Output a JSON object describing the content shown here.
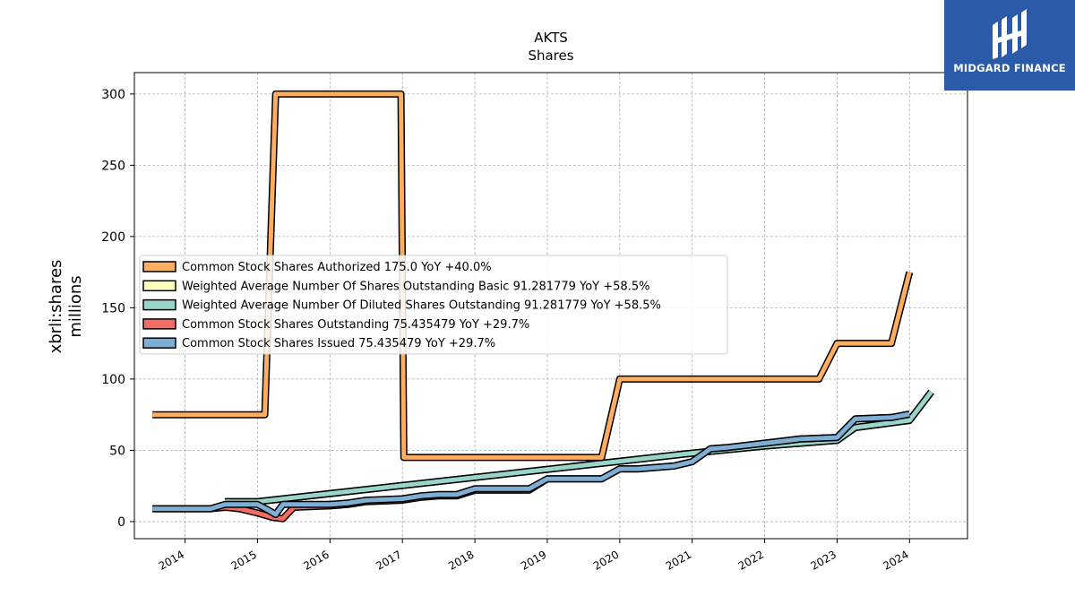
{
  "chart_data": {
    "type": "line",
    "title": "AKTS",
    "subtitle": "Shares",
    "ylabel": "xbrli:shares",
    "ylabel2": "millions",
    "xlim": [
      2013.3,
      2024.8
    ],
    "ylim": [
      -12,
      315
    ],
    "x_ticks": [
      2014,
      2015,
      2016,
      2017,
      2018,
      2019,
      2020,
      2021,
      2022,
      2023,
      2024
    ],
    "x_tick_labels": [
      "2014",
      "2015",
      "2016",
      "2017",
      "2018",
      "2019",
      "2020",
      "2021",
      "2022",
      "2023",
      "2024"
    ],
    "y_ticks": [
      0,
      50,
      100,
      150,
      200,
      250,
      300
    ],
    "y_tick_labels": [
      "0",
      "50",
      "100",
      "150",
      "200",
      "250",
      "300"
    ],
    "grid": true,
    "legend_position": "center-left",
    "series": [
      {
        "name": "Common Stock Shares Authorized  175.0 YoY +40.0%",
        "color": "#fdae61",
        "points": [
          [
            2013.55,
            75
          ],
          [
            2015.1,
            75
          ],
          [
            2015.25,
            300
          ],
          [
            2016.98,
            300
          ],
          [
            2017.02,
            45
          ],
          [
            2019.75,
            45
          ],
          [
            2020.0,
            100
          ],
          [
            2022.75,
            100
          ],
          [
            2023.0,
            125
          ],
          [
            2023.75,
            125
          ],
          [
            2024.0,
            175
          ]
        ]
      },
      {
        "name": "Weighted Average Number Of Shares Outstanding Basic  91.281779 YoY +58.5%",
        "color": "#ffffbf",
        "points": [
          [
            2014.55,
            14
          ],
          [
            2015.0,
            14
          ],
          [
            2021.0,
            48
          ],
          [
            2022.0,
            53
          ],
          [
            2023.0,
            57
          ],
          [
            2023.25,
            66
          ],
          [
            2024.0,
            71
          ],
          [
            2024.3,
            91
          ]
        ]
      },
      {
        "name": "Weighted Average Number Of Diluted Shares Outstanding  91.281779 YoY +58.5%",
        "color": "#99d5c9",
        "points": [
          [
            2014.55,
            14
          ],
          [
            2015.0,
            14
          ],
          [
            2021.0,
            48
          ],
          [
            2022.0,
            53
          ],
          [
            2023.0,
            57
          ],
          [
            2023.25,
            66
          ],
          [
            2024.0,
            71
          ],
          [
            2024.3,
            91
          ]
        ]
      },
      {
        "name": "Common Stock Shares Outstanding  75.435479 YoY +29.7%",
        "color": "#f46d63",
        "points": [
          [
            2013.55,
            9
          ],
          [
            2014.35,
            9
          ],
          [
            2014.55,
            10
          ],
          [
            2014.75,
            9
          ],
          [
            2015.0,
            6
          ],
          [
            2015.2,
            3
          ],
          [
            2015.35,
            2
          ],
          [
            2015.5,
            10
          ],
          [
            2016.0,
            11
          ],
          [
            2016.25,
            12
          ],
          [
            2016.5,
            14
          ],
          [
            2017.0,
            15
          ],
          [
            2017.25,
            17
          ],
          [
            2017.5,
            18
          ],
          [
            2017.75,
            18
          ],
          [
            2018.0,
            22
          ],
          [
            2018.75,
            22
          ],
          [
            2019.0,
            30
          ],
          [
            2019.75,
            30
          ],
          [
            2020.0,
            37
          ],
          [
            2020.25,
            37
          ],
          [
            2020.5,
            38
          ],
          [
            2020.75,
            39
          ],
          [
            2021.0,
            42
          ],
          [
            2021.25,
            51
          ],
          [
            2021.5,
            52
          ],
          [
            2022.0,
            55
          ],
          [
            2022.5,
            58
          ],
          [
            2023.0,
            59
          ],
          [
            2023.25,
            72
          ],
          [
            2023.75,
            73
          ],
          [
            2024.0,
            75.4
          ]
        ]
      },
      {
        "name": "Common Stock Shares Issued  75.435479 YoY +29.7%",
        "color": "#7eaed3",
        "points": [
          [
            2013.55,
            9
          ],
          [
            2014.35,
            9
          ],
          [
            2014.55,
            12
          ],
          [
            2014.75,
            12
          ],
          [
            2015.0,
            12
          ],
          [
            2015.15,
            8
          ],
          [
            2015.25,
            5
          ],
          [
            2015.35,
            12
          ],
          [
            2016.0,
            12
          ],
          [
            2016.25,
            13
          ],
          [
            2016.5,
            15
          ],
          [
            2017.0,
            16
          ],
          [
            2017.25,
            18
          ],
          [
            2017.5,
            19
          ],
          [
            2017.75,
            19
          ],
          [
            2018.0,
            23
          ],
          [
            2018.75,
            23
          ],
          [
            2019.0,
            30
          ],
          [
            2019.75,
            30
          ],
          [
            2020.0,
            37
          ],
          [
            2020.25,
            37
          ],
          [
            2020.5,
            38
          ],
          [
            2020.75,
            39
          ],
          [
            2021.0,
            42
          ],
          [
            2021.25,
            51
          ],
          [
            2021.5,
            52
          ],
          [
            2022.0,
            55
          ],
          [
            2022.5,
            58
          ],
          [
            2023.0,
            59
          ],
          [
            2023.25,
            72
          ],
          [
            2023.75,
            73
          ],
          [
            2024.0,
            75.4
          ]
        ]
      }
    ]
  },
  "logo": {
    "name": "midgard-finance-logo",
    "text": "MIDGARD FINANCE",
    "background": "#2b5aa8"
  }
}
